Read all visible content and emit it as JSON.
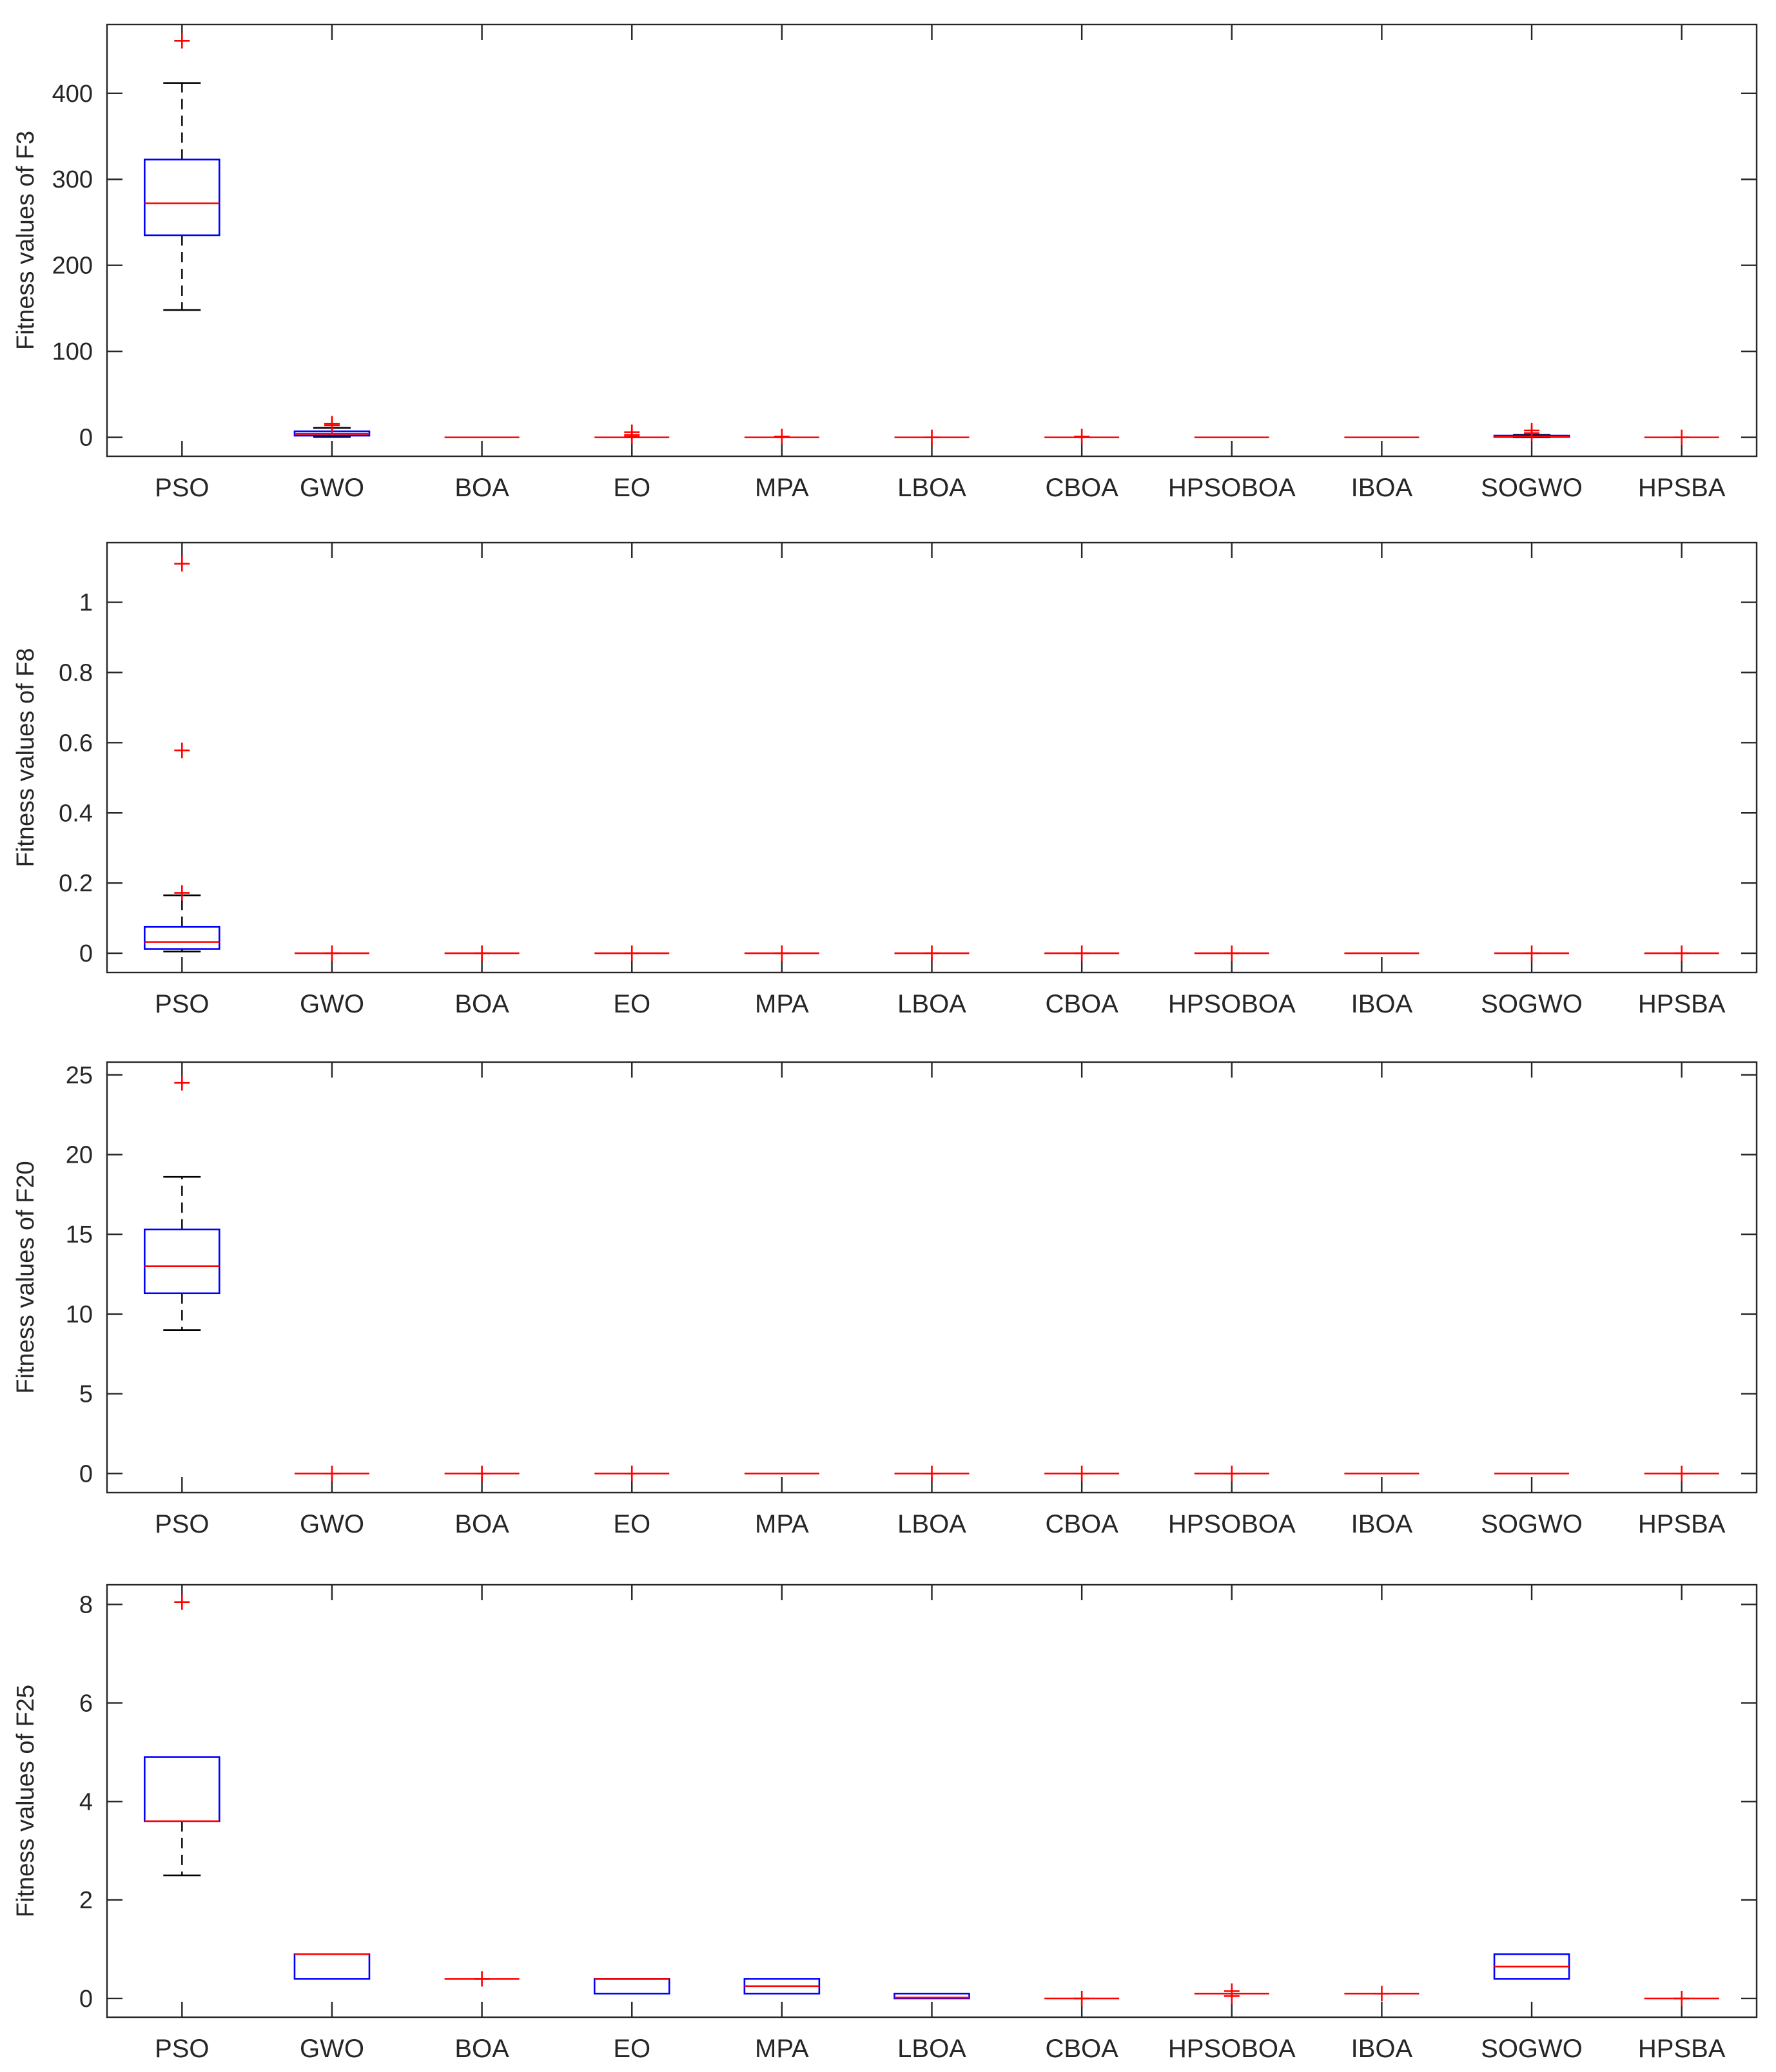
{
  "colors": {
    "box": "#0000ff",
    "median": "#ff0000",
    "outlier": "#ff0000",
    "whisker": "#000000",
    "axis": "#262626"
  },
  "chart_data": [
    {
      "type": "box",
      "ylabel": "Fitness values of F3",
      "ylim": [
        -22,
        480
      ],
      "yticks": [
        0,
        100,
        200,
        300,
        400
      ],
      "categories": [
        "PSO",
        "GWO",
        "BOA",
        "EO",
        "MPA",
        "LBOA",
        "CBOA",
        "HPSOBOA",
        "IBOA",
        "SOGWO",
        "HPSBA"
      ],
      "boxes": [
        {
          "whislo": 148,
          "q1": 235,
          "med": 272,
          "q3": 323,
          "whishi": 412,
          "outliers": [
            461
          ]
        },
        {
          "whislo": 0.5,
          "q1": 2,
          "med": 4,
          "q3": 7,
          "whishi": 11,
          "outliers": [
            14,
            16
          ]
        },
        {
          "whislo": 0,
          "q1": 0,
          "med": 0,
          "q3": 0,
          "whishi": 0,
          "outliers": []
        },
        {
          "whislo": 0,
          "q1": 0,
          "med": 0,
          "q3": 0,
          "whishi": 0,
          "outliers": [
            1,
            3,
            6
          ]
        },
        {
          "whislo": 0,
          "q1": 0,
          "med": 0,
          "q3": 0,
          "whishi": 0,
          "outliers": [
            1
          ]
        },
        {
          "whislo": 0,
          "q1": 0,
          "med": 0,
          "q3": 0,
          "whishi": 0,
          "outliers": [
            0
          ]
        },
        {
          "whislo": 0,
          "q1": 0,
          "med": 0,
          "q3": 0,
          "whishi": 0,
          "outliers": [
            1
          ]
        },
        {
          "whislo": 0,
          "q1": 0,
          "med": 0,
          "q3": 0,
          "whishi": 0,
          "outliers": []
        },
        {
          "whislo": 0,
          "q1": 0,
          "med": 0,
          "q3": 0,
          "whishi": 0,
          "outliers": []
        },
        {
          "whislo": 0,
          "q1": 0.5,
          "med": 1,
          "q3": 2,
          "whishi": 3,
          "outliers": [
            5,
            8
          ]
        },
        {
          "whislo": 0,
          "q1": 0,
          "med": 0,
          "q3": 0,
          "whishi": 0,
          "outliers": [
            0
          ]
        }
      ]
    },
    {
      "type": "box",
      "ylabel": "Fitness values of F8",
      "ylim": [
        -0.055,
        1.17
      ],
      "yticks": [
        0,
        0.2,
        0.4,
        0.6,
        0.8,
        1
      ],
      "categories": [
        "PSO",
        "GWO",
        "BOA",
        "EO",
        "MPA",
        "LBOA",
        "CBOA",
        "HPSOBOA",
        "IBOA",
        "SOGWO",
        "HPSBA"
      ],
      "boxes": [
        {
          "whislo": 0.005,
          "q1": 0.012,
          "med": 0.032,
          "q3": 0.075,
          "whishi": 0.165,
          "outliers": [
            0.172,
            0.578,
            1.11
          ]
        },
        {
          "whislo": 0,
          "q1": 0,
          "med": 0,
          "q3": 0,
          "whishi": 0,
          "outliers": [
            0
          ]
        },
        {
          "whislo": 0,
          "q1": 0,
          "med": 0,
          "q3": 0,
          "whishi": 0,
          "outliers": [
            0
          ]
        },
        {
          "whislo": 0,
          "q1": 0,
          "med": 0,
          "q3": 0,
          "whishi": 0,
          "outliers": [
            0
          ]
        },
        {
          "whislo": 0,
          "q1": 0,
          "med": 0,
          "q3": 0,
          "whishi": 0,
          "outliers": [
            0
          ]
        },
        {
          "whislo": 0,
          "q1": 0,
          "med": 0,
          "q3": 0,
          "whishi": 0,
          "outliers": [
            0
          ]
        },
        {
          "whislo": 0,
          "q1": 0,
          "med": 0,
          "q3": 0,
          "whishi": 0,
          "outliers": [
            0
          ]
        },
        {
          "whislo": 0,
          "q1": 0,
          "med": 0,
          "q3": 0,
          "whishi": 0,
          "outliers": [
            0
          ]
        },
        {
          "whislo": 0,
          "q1": 0,
          "med": 0,
          "q3": 0,
          "whishi": 0,
          "outliers": []
        },
        {
          "whislo": 0,
          "q1": 0,
          "med": 0,
          "q3": 0,
          "whishi": 0,
          "outliers": [
            0
          ]
        },
        {
          "whislo": 0,
          "q1": 0,
          "med": 0,
          "q3": 0,
          "whishi": 0,
          "outliers": [
            0
          ]
        }
      ]
    },
    {
      "type": "box",
      "ylabel": "Fitness values of F20",
      "ylim": [
        -1.2,
        25.8
      ],
      "yticks": [
        0,
        5,
        10,
        15,
        20,
        25
      ],
      "categories": [
        "PSO",
        "GWO",
        "BOA",
        "EO",
        "MPA",
        "LBOA",
        "CBOA",
        "HPSOBOA",
        "IBOA",
        "SOGWO",
        "HPSBA"
      ],
      "boxes": [
        {
          "whislo": 9,
          "q1": 11.3,
          "med": 13,
          "q3": 15.3,
          "whishi": 18.6,
          "outliers": [
            24.5
          ]
        },
        {
          "whislo": 0,
          "q1": 0,
          "med": 0,
          "q3": 0,
          "whishi": 0,
          "outliers": [
            0
          ]
        },
        {
          "whislo": 0,
          "q1": 0,
          "med": 0,
          "q3": 0,
          "whishi": 0,
          "outliers": [
            0
          ]
        },
        {
          "whislo": 0,
          "q1": 0,
          "med": 0,
          "q3": 0,
          "whishi": 0,
          "outliers": [
            0
          ]
        },
        {
          "whislo": 0,
          "q1": 0,
          "med": 0,
          "q3": 0,
          "whishi": 0,
          "outliers": []
        },
        {
          "whislo": 0,
          "q1": 0,
          "med": 0,
          "q3": 0,
          "whishi": 0,
          "outliers": [
            0
          ]
        },
        {
          "whislo": 0,
          "q1": 0,
          "med": 0,
          "q3": 0,
          "whishi": 0,
          "outliers": [
            0
          ]
        },
        {
          "whislo": 0,
          "q1": 0,
          "med": 0,
          "q3": 0,
          "whishi": 0,
          "outliers": [
            0
          ]
        },
        {
          "whislo": 0,
          "q1": 0,
          "med": 0,
          "q3": 0,
          "whishi": 0,
          "outliers": []
        },
        {
          "whislo": 0,
          "q1": 0,
          "med": 0,
          "q3": 0,
          "whishi": 0,
          "outliers": []
        },
        {
          "whislo": 0,
          "q1": 0,
          "med": 0,
          "q3": 0,
          "whishi": 0,
          "outliers": [
            0
          ]
        }
      ]
    },
    {
      "type": "box",
      "ylabel": "Fitness values of F25",
      "ylim": [
        -0.38,
        8.4
      ],
      "yticks": [
        0,
        2,
        4,
        6,
        8
      ],
      "categories": [
        "PSO",
        "GWO",
        "BOA",
        "EO",
        "MPA",
        "LBOA",
        "CBOA",
        "HPSOBOA",
        "IBOA",
        "SOGWO",
        "HPSBA"
      ],
      "boxes": [
        {
          "whislo": 2.5,
          "q1": 3.6,
          "med": 3.6,
          "q3": 4.9,
          "whishi": 4.9,
          "outliers": [
            8.05
          ]
        },
        {
          "whislo": 0.4,
          "q1": 0.4,
          "med": 0.9,
          "q3": 0.9,
          "whishi": 0.9,
          "outliers": []
        },
        {
          "whislo": 0.4,
          "q1": 0.4,
          "med": 0.4,
          "q3": 0.4,
          "whishi": 0.4,
          "outliers": [
            0.4
          ]
        },
        {
          "whislo": 0.1,
          "q1": 0.1,
          "med": 0.4,
          "q3": 0.4,
          "whishi": 0.4,
          "outliers": []
        },
        {
          "whislo": 0.1,
          "q1": 0.1,
          "med": 0.25,
          "q3": 0.4,
          "whishi": 0.4,
          "outliers": []
        },
        {
          "whislo": 0,
          "q1": 0,
          "med": 0.02,
          "q3": 0.1,
          "whishi": 0.1,
          "outliers": []
        },
        {
          "whislo": 0,
          "q1": 0,
          "med": 0,
          "q3": 0,
          "whishi": 0,
          "outliers": [
            0
          ]
        },
        {
          "whislo": 0.1,
          "q1": 0.1,
          "med": 0.1,
          "q3": 0.1,
          "whishi": 0.1,
          "outliers": [
            0.05,
            0.15
          ]
        },
        {
          "whislo": 0.1,
          "q1": 0.1,
          "med": 0.1,
          "q3": 0.1,
          "whishi": 0.1,
          "outliers": [
            0.1
          ]
        },
        {
          "whislo": 0.4,
          "q1": 0.4,
          "med": 0.65,
          "q3": 0.9,
          "whishi": 0.9,
          "outliers": []
        },
        {
          "whislo": 0,
          "q1": 0,
          "med": 0,
          "q3": 0,
          "whishi": 0,
          "outliers": [
            0
          ]
        }
      ]
    }
  ]
}
